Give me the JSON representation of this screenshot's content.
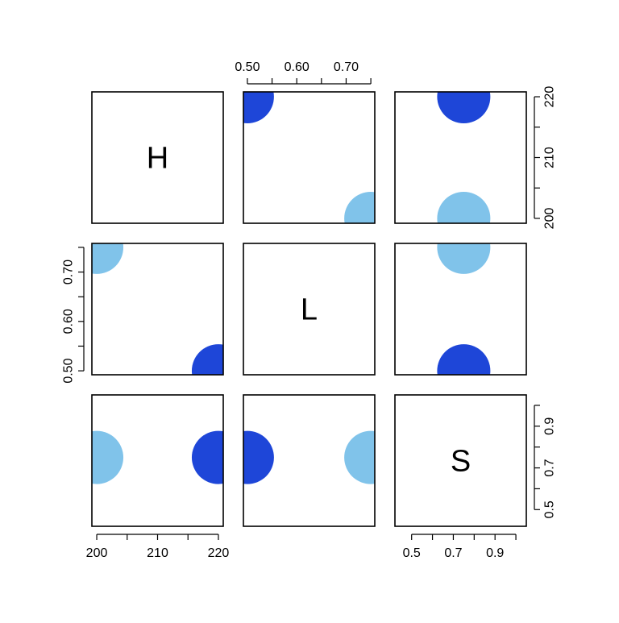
{
  "chart_data": {
    "type": "scatter",
    "subtype": "pairs",
    "variables": [
      {
        "name": "H",
        "range": [
          199.2,
          220.8
        ],
        "ticks": [
          200,
          205,
          210,
          215,
          220
        ],
        "tick_labels": [
          "200",
          "210",
          "220"
        ]
      },
      {
        "name": "L",
        "range": [
          0.492,
          0.758
        ],
        "ticks": [
          0.5,
          0.55,
          0.6,
          0.65,
          0.7,
          0.75
        ],
        "tick_labels": [
          "0.50",
          "0.60",
          "0.70"
        ]
      },
      {
        "name": "S",
        "range": [
          0.42,
          1.05
        ],
        "ticks": [
          0.5,
          0.6,
          0.7,
          0.8,
          0.9,
          1.0
        ],
        "tick_labels": [
          "0.5",
          "0.7",
          "0.9"
        ]
      }
    ],
    "points": [
      {
        "H": 220,
        "L": 0.5,
        "S": 0.75,
        "color": "#1E46D8"
      },
      {
        "H": 200,
        "L": 0.75,
        "S": 0.75,
        "color": "#80C3EA"
      }
    ],
    "grid": false,
    "legend": "none"
  }
}
